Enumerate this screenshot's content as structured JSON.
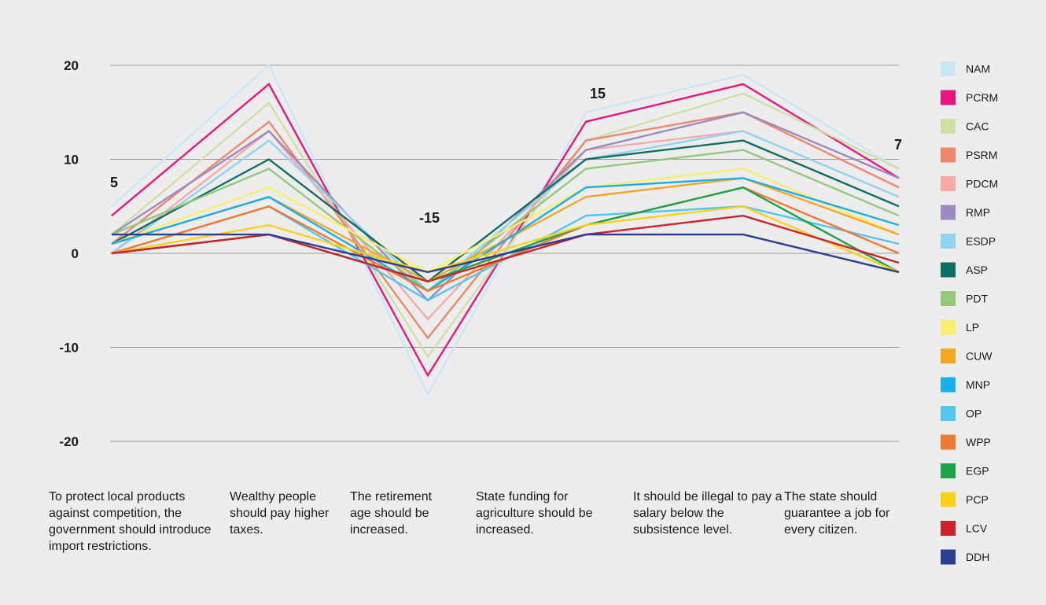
{
  "chart_data": {
    "type": "line",
    "title": "",
    "xlabel": "",
    "ylabel": "",
    "ylim": [
      -20,
      20
    ],
    "yticks": [
      20,
      10,
      0,
      -10,
      -20
    ],
    "grid": true,
    "legend": "right",
    "categories": [
      "To protect local products against competition, the government should introduce import restrictions.",
      "Wealthy people should pay higher taxes.",
      "The retirement age should be increased.",
      "State funding for agriculture should be increased.",
      "It should be illegal to pay a salary below the subsistence level.",
      "The state should guarantee a job for every citizen."
    ],
    "peak_labels": [
      {
        "text": "5",
        "category": 0
      },
      {
        "text": "-15",
        "category": 2
      },
      {
        "text": "15",
        "category": 3
      },
      {
        "text": "7",
        "category": 5
      }
    ],
    "series": [
      {
        "name": "NAM",
        "color": "#c9e8f7",
        "values": [
          5,
          20,
          -15,
          15,
          19,
          9
        ]
      },
      {
        "name": "PCRM",
        "color": "#e5177e",
        "values": [
          4,
          18,
          -13,
          14,
          18,
          8
        ]
      },
      {
        "name": "CAC",
        "color": "#cfe0a3",
        "values": [
          2,
          16,
          -11,
          12,
          17,
          9
        ]
      },
      {
        "name": "PSRM",
        "color": "#f0876b",
        "values": [
          1,
          14,
          -9,
          12,
          15,
          7
        ]
      },
      {
        "name": "PDCM",
        "color": "#f5aaa8",
        "values": [
          0,
          13,
          -7,
          11,
          13,
          6
        ]
      },
      {
        "name": "RMP",
        "color": "#9c8ac2",
        "values": [
          2,
          13,
          -5,
          11,
          15,
          8
        ]
      },
      {
        "name": "ESDP",
        "color": "#92d3f2",
        "values": [
          0,
          12,
          -4,
          10,
          13,
          6
        ]
      },
      {
        "name": "ASP",
        "color": "#0f6e62",
        "values": [
          1,
          10,
          -3,
          10,
          12,
          5
        ]
      },
      {
        "name": "PDT",
        "color": "#94c97c",
        "values": [
          2,
          9,
          -4,
          9,
          11,
          4
        ]
      },
      {
        "name": "LP",
        "color": "#fbee6c",
        "values": [
          1,
          7,
          -2,
          7,
          9,
          2
        ]
      },
      {
        "name": "CUW",
        "color": "#f6a623",
        "values": [
          1,
          6,
          -3,
          6,
          8,
          2
        ]
      },
      {
        "name": "MNP",
        "color": "#1aaee8",
        "values": [
          1,
          6,
          -4,
          7,
          8,
          3
        ]
      },
      {
        "name": "OP",
        "color": "#52c6ef",
        "values": [
          0,
          5,
          -5,
          4,
          5,
          1
        ]
      },
      {
        "name": "WPP",
        "color": "#ee7a30",
        "values": [
          0,
          5,
          -4,
          3,
          7,
          0
        ]
      },
      {
        "name": "EGP",
        "color": "#1ea34a",
        "values": [
          0,
          2,
          -3,
          3,
          7,
          -2
        ]
      },
      {
        "name": "PCP",
        "color": "#fad21c",
        "values": [
          0,
          3,
          -2,
          3,
          5,
          -2
        ]
      },
      {
        "name": "LCV",
        "color": "#cd2229",
        "values": [
          0,
          2,
          -3,
          2,
          4,
          -1
        ]
      },
      {
        "name": "DDH",
        "color": "#2a3f93",
        "values": [
          2,
          2,
          -2,
          2,
          2,
          -2
        ]
      }
    ]
  }
}
